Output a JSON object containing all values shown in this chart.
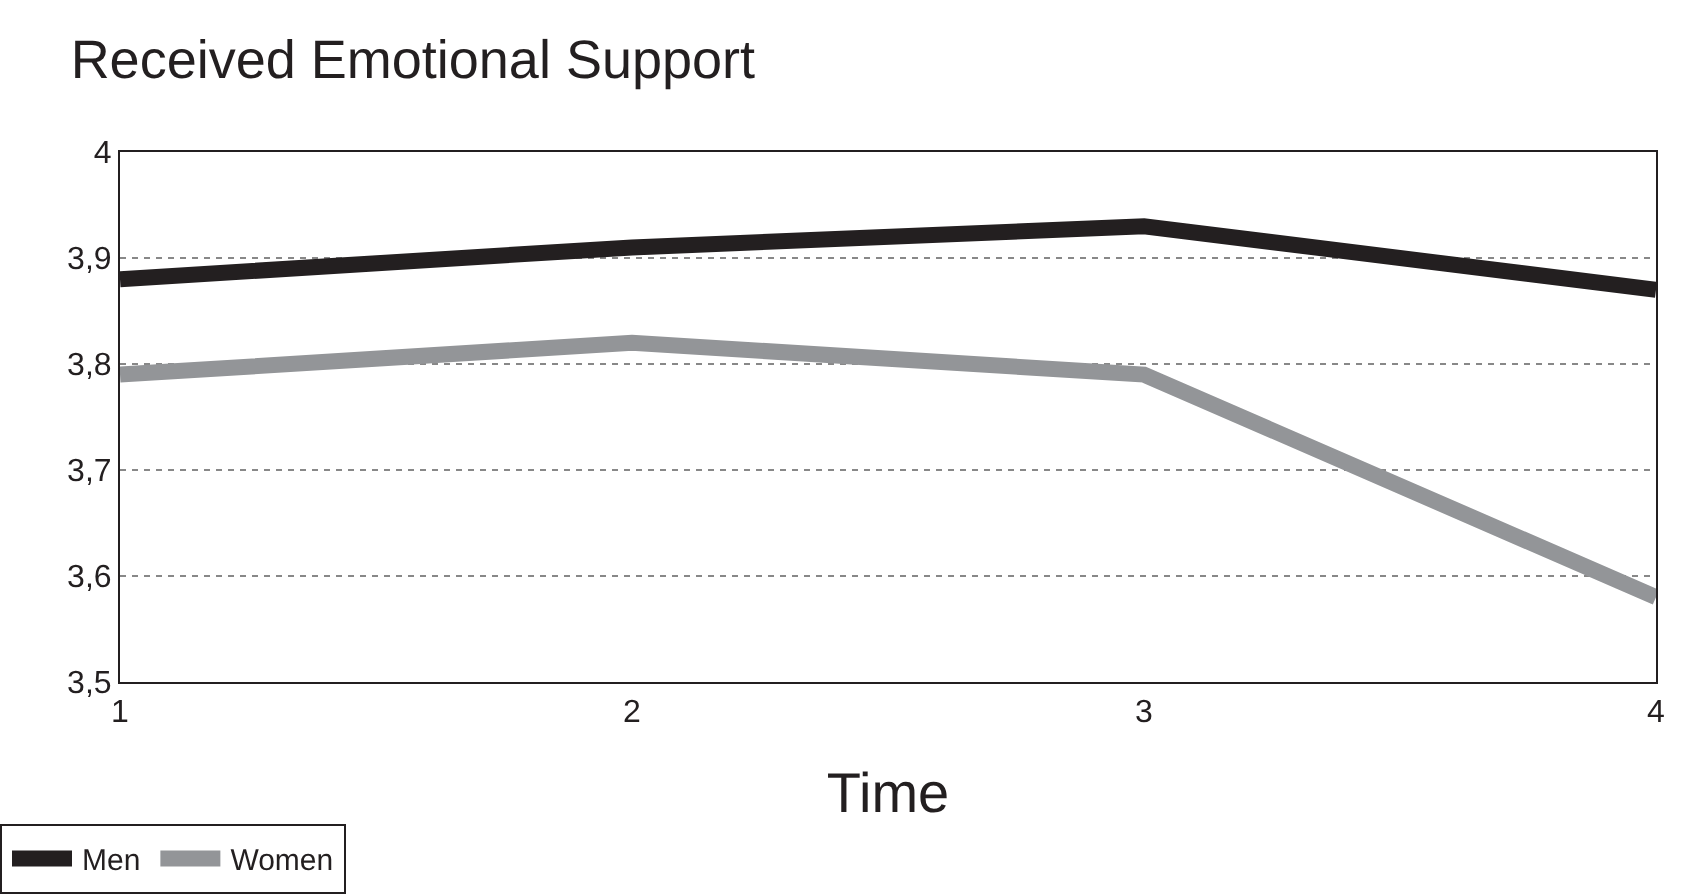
{
  "chart_data": {
    "type": "line",
    "title": "Received Emotional Support",
    "xlabel": "Time",
    "x": [
      1,
      2,
      3,
      4
    ],
    "series": [
      {
        "name": "Men",
        "color": "#231f20",
        "values": [
          3.88,
          3.91,
          3.93,
          3.87
        ]
      },
      {
        "name": "Women",
        "color": "#939598",
        "values": [
          3.79,
          3.82,
          3.79,
          3.58
        ]
      }
    ],
    "xlim": [
      1,
      4
    ],
    "xticks": [
      1,
      2,
      3,
      4
    ],
    "ylim": [
      3.5,
      4
    ],
    "yticks": [
      {
        "value": 3.5,
        "label": "3,5"
      },
      {
        "value": 3.6,
        "label": "3,6"
      },
      {
        "value": 3.7,
        "label": "3,7"
      },
      {
        "value": 3.8,
        "label": "3,8"
      },
      {
        "value": 3.9,
        "label": "3,9"
      },
      {
        "value": 4,
        "label": "4"
      }
    ],
    "grid": "y",
    "legend": "bottom left",
    "marker": "none",
    "line_style": "solid"
  }
}
